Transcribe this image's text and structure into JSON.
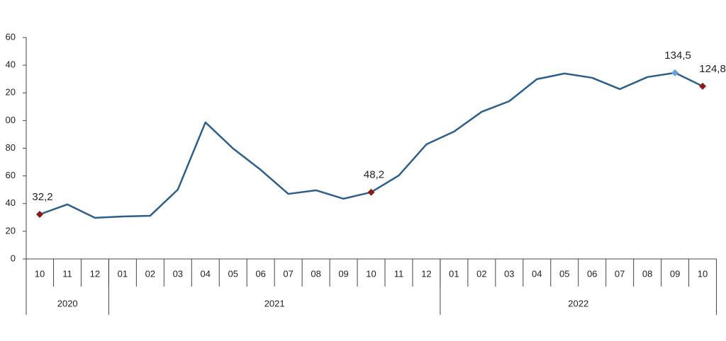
{
  "chart_data": {
    "type": "line",
    "categories": [
      "10",
      "11",
      "12",
      "01",
      "02",
      "03",
      "04",
      "05",
      "06",
      "07",
      "08",
      "09",
      "10",
      "11",
      "12",
      "01",
      "02",
      "03",
      "04",
      "05",
      "06",
      "07",
      "08",
      "09",
      "10"
    ],
    "years": [
      "2020",
      "2021",
      "2022"
    ],
    "series": [
      {
        "color": "#2e5f8a",
        "values": [
          32.2,
          39.4,
          29.7,
          30.7,
          31.2,
          50.1,
          98.7,
          79.8,
          64.4,
          47.0,
          49.6,
          43.5,
          48.2,
          60.3,
          82.8,
          92.0,
          106.3,
          114.0,
          129.9,
          134.0,
          130.9,
          122.7,
          131.4,
          134.5,
          124.8
        ],
        "value_labels": [
          "32,2",
          null,
          null,
          null,
          null,
          null,
          null,
          null,
          null,
          null,
          null,
          null,
          "48,2",
          null,
          null,
          null,
          null,
          null,
          null,
          null,
          null,
          null,
          null,
          "134,5",
          "124,8"
        ]
      }
    ],
    "marker_color": "#8b1a1a",
    "peak_marker_color": "#6a9fd8",
    "ylim": [
      0,
      160
    ],
    "yticks": [
      0,
      20,
      40,
      60,
      80,
      {
        "value": 100,
        "label": "00"
      },
      {
        "value": 120,
        "label": "20"
      },
      {
        "value": 140,
        "label": "40"
      },
      {
        "value": 160,
        "label": "60"
      }
    ],
    "grid": false
  }
}
